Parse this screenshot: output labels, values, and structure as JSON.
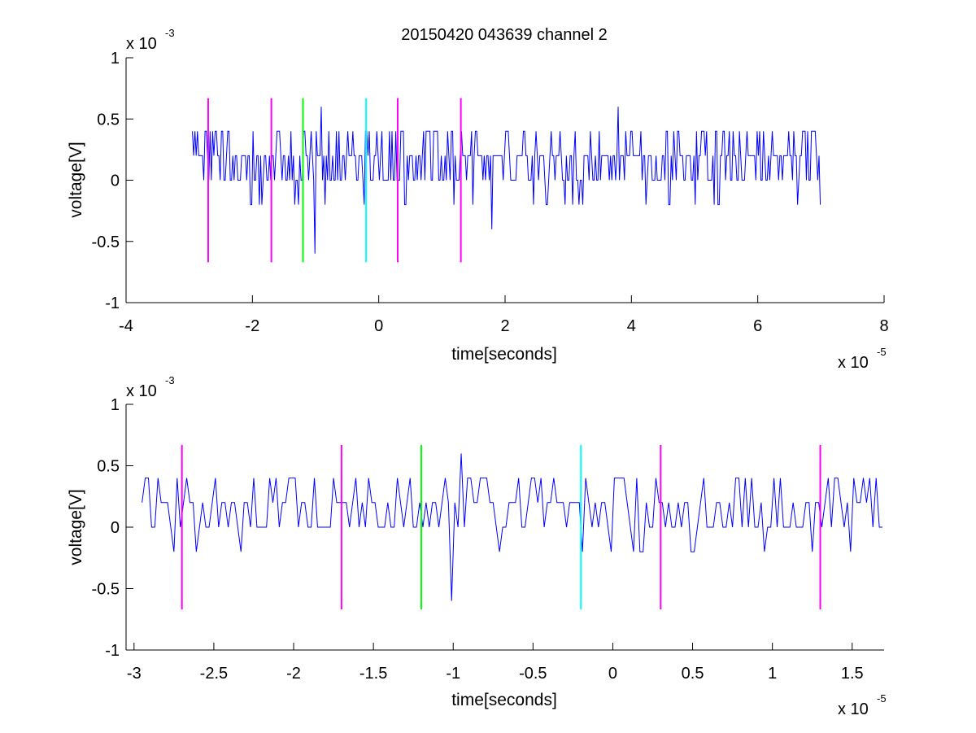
{
  "chart_data": [
    {
      "type": "line",
      "title": "20150420 043639 channel 2",
      "xlabel": "time[seconds]",
      "ylabel": "voltage[V]",
      "x_scale_label": "x 10",
      "x_scale_exp": "-5",
      "y_scale_label": "x 10",
      "y_scale_exp": "-3",
      "xlim": [
        -4,
        8
      ],
      "ylim": [
        -1,
        1
      ],
      "xticks": [
        -4,
        -2,
        0,
        2,
        4,
        6,
        8
      ],
      "xtick_labels": [
        "-4",
        "-2",
        "0",
        "2",
        "4",
        "6",
        "8"
      ],
      "yticks": [
        -1,
        -0.5,
        0,
        0.5,
        1
      ],
      "ytick_labels": [
        "-1",
        "-0.5",
        "0",
        "0.5",
        "1"
      ],
      "grid": false,
      "series": [
        {
          "color": "#0000ff",
          "x_range": [
            -2.95,
            7.0
          ],
          "sample_step": 0.02,
          "levels": [
            0,
            0.2,
            0.4
          ],
          "spikes": [
            {
              "x": -1.0,
              "y": -0.6
            },
            {
              "x": -0.9,
              "y": 0.6
            },
            {
              "x": 1.8,
              "y": -0.4
            },
            {
              "x": 3.8,
              "y": 0.6
            },
            {
              "x": 1.2,
              "y": -0.2
            },
            {
              "x": 5.0,
              "y": -0.2
            }
          ]
        }
      ],
      "markers": [
        {
          "x": -2.7,
          "color": "#ff00ff",
          "ymin": -0.67,
          "ymax": 0.67
        },
        {
          "x": -1.7,
          "color": "#ff00ff",
          "ymin": -0.67,
          "ymax": 0.67
        },
        {
          "x": -1.2,
          "color": "#00ff00",
          "ymin": -0.67,
          "ymax": 0.67
        },
        {
          "x": -0.2,
          "color": "#00ffff",
          "ymin": -0.67,
          "ymax": 0.67
        },
        {
          "x": 0.3,
          "color": "#ff00ff",
          "ymin": -0.67,
          "ymax": 0.67
        },
        {
          "x": 1.3,
          "color": "#ff00ff",
          "ymin": -0.67,
          "ymax": 0.67
        }
      ]
    },
    {
      "type": "line",
      "xlabel": "time[seconds]",
      "ylabel": "voltage[V]",
      "x_scale_label": "x 10",
      "x_scale_exp": "-5",
      "y_scale_label": "x 10",
      "y_scale_exp": "-3",
      "xlim": [
        -3.05,
        1.7
      ],
      "ylim": [
        -1,
        1
      ],
      "xticks": [
        -3,
        -2.5,
        -2,
        -1.5,
        -1,
        -0.5,
        0,
        0.5,
        1,
        1.5
      ],
      "xtick_labels": [
        "-3",
        "-2.5",
        "-2",
        "-1.5",
        "-1",
        "-0.5",
        "0",
        "0.5",
        "1",
        "1.5"
      ],
      "yticks": [
        -1,
        -0.5,
        0,
        0.5,
        1
      ],
      "ytick_labels": [
        "-1",
        "-0.5",
        "0",
        "0.5",
        "1"
      ],
      "grid": false,
      "series": [
        {
          "color": "#0000ff",
          "x_range": [
            -2.95,
            1.7
          ],
          "sample_step": 0.02,
          "levels": [
            0,
            0.2,
            0.4
          ],
          "spikes": [
            {
              "x": -1.0,
              "y": -0.6
            },
            {
              "x": -0.94,
              "y": 0.6
            },
            {
              "x": -2.6,
              "y": -0.2
            },
            {
              "x": 0.2,
              "y": -0.2
            },
            {
              "x": 1.5,
              "y": -0.2
            }
          ]
        }
      ],
      "markers": [
        {
          "x": -2.7,
          "color": "#ff00ff",
          "ymin": -0.67,
          "ymax": 0.67
        },
        {
          "x": -1.7,
          "color": "#ff00ff",
          "ymin": -0.67,
          "ymax": 0.67
        },
        {
          "x": -1.2,
          "color": "#00ff00",
          "ymin": -0.67,
          "ymax": 0.67
        },
        {
          "x": -0.2,
          "color": "#00ffff",
          "ymin": -0.67,
          "ymax": 0.67
        },
        {
          "x": 0.3,
          "color": "#ff00ff",
          "ymin": -0.67,
          "ymax": 0.67
        },
        {
          "x": 1.3,
          "color": "#ff00ff",
          "ymin": -0.67,
          "ymax": 0.67
        }
      ]
    }
  ]
}
